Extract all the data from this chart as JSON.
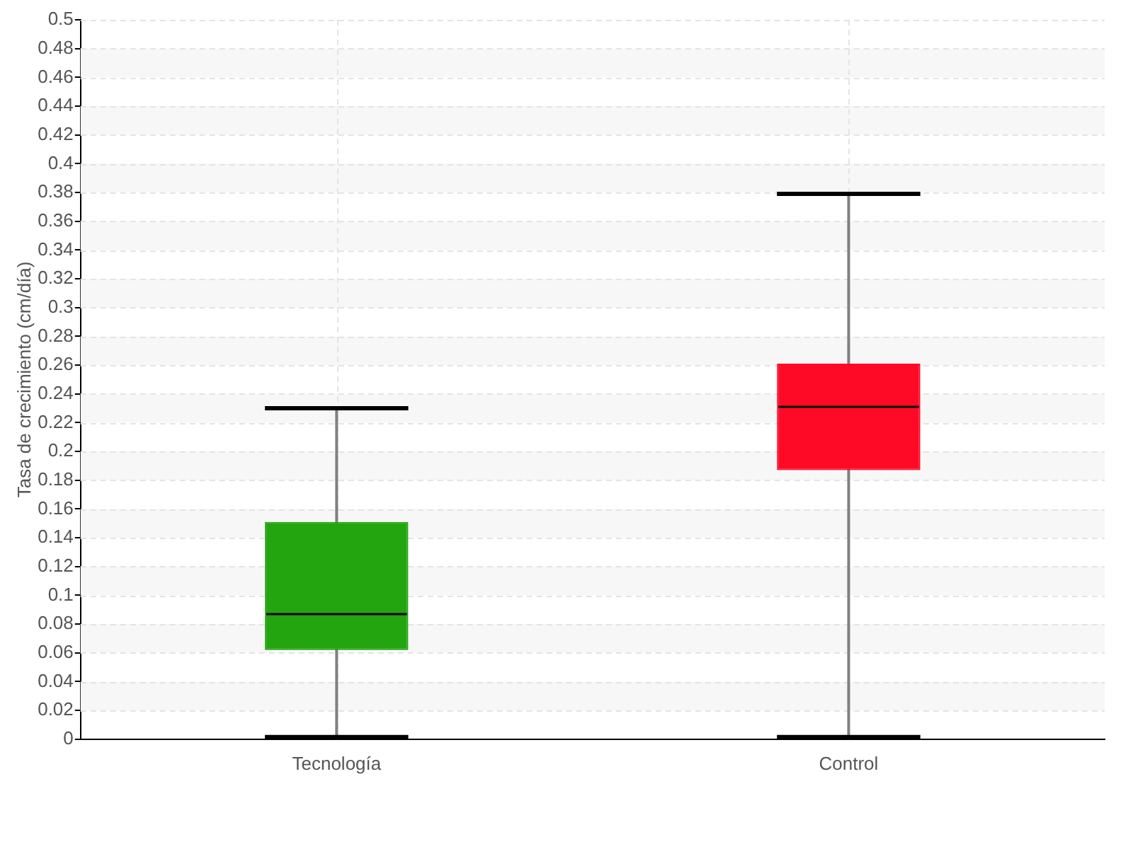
{
  "chart_data": {
    "type": "box",
    "ylabel": "Tasa de crecimiento (cm/día)",
    "categories": [
      "Tecnología",
      "Control"
    ],
    "colors": [
      "#22a50f",
      "#ff0a26"
    ],
    "boxes": [
      {
        "low": 0,
        "q1": 0.062,
        "median": 0.087,
        "q3": 0.151,
        "high": 0.23
      },
      {
        "low": 0,
        "q1": 0.187,
        "median": 0.231,
        "q3": 0.261,
        "high": 0.379
      }
    ],
    "ylim": [
      0,
      0.5
    ],
    "yticks": [
      0,
      0.02,
      0.04,
      0.06,
      0.08,
      0.1,
      0.12,
      0.14,
      0.16,
      0.18,
      0.2,
      0.22,
      0.24,
      0.26,
      0.28,
      0.3,
      0.32,
      0.34,
      0.36,
      0.38,
      0.4,
      0.42,
      0.44,
      0.46,
      0.48,
      0.5
    ],
    "grid": true
  }
}
